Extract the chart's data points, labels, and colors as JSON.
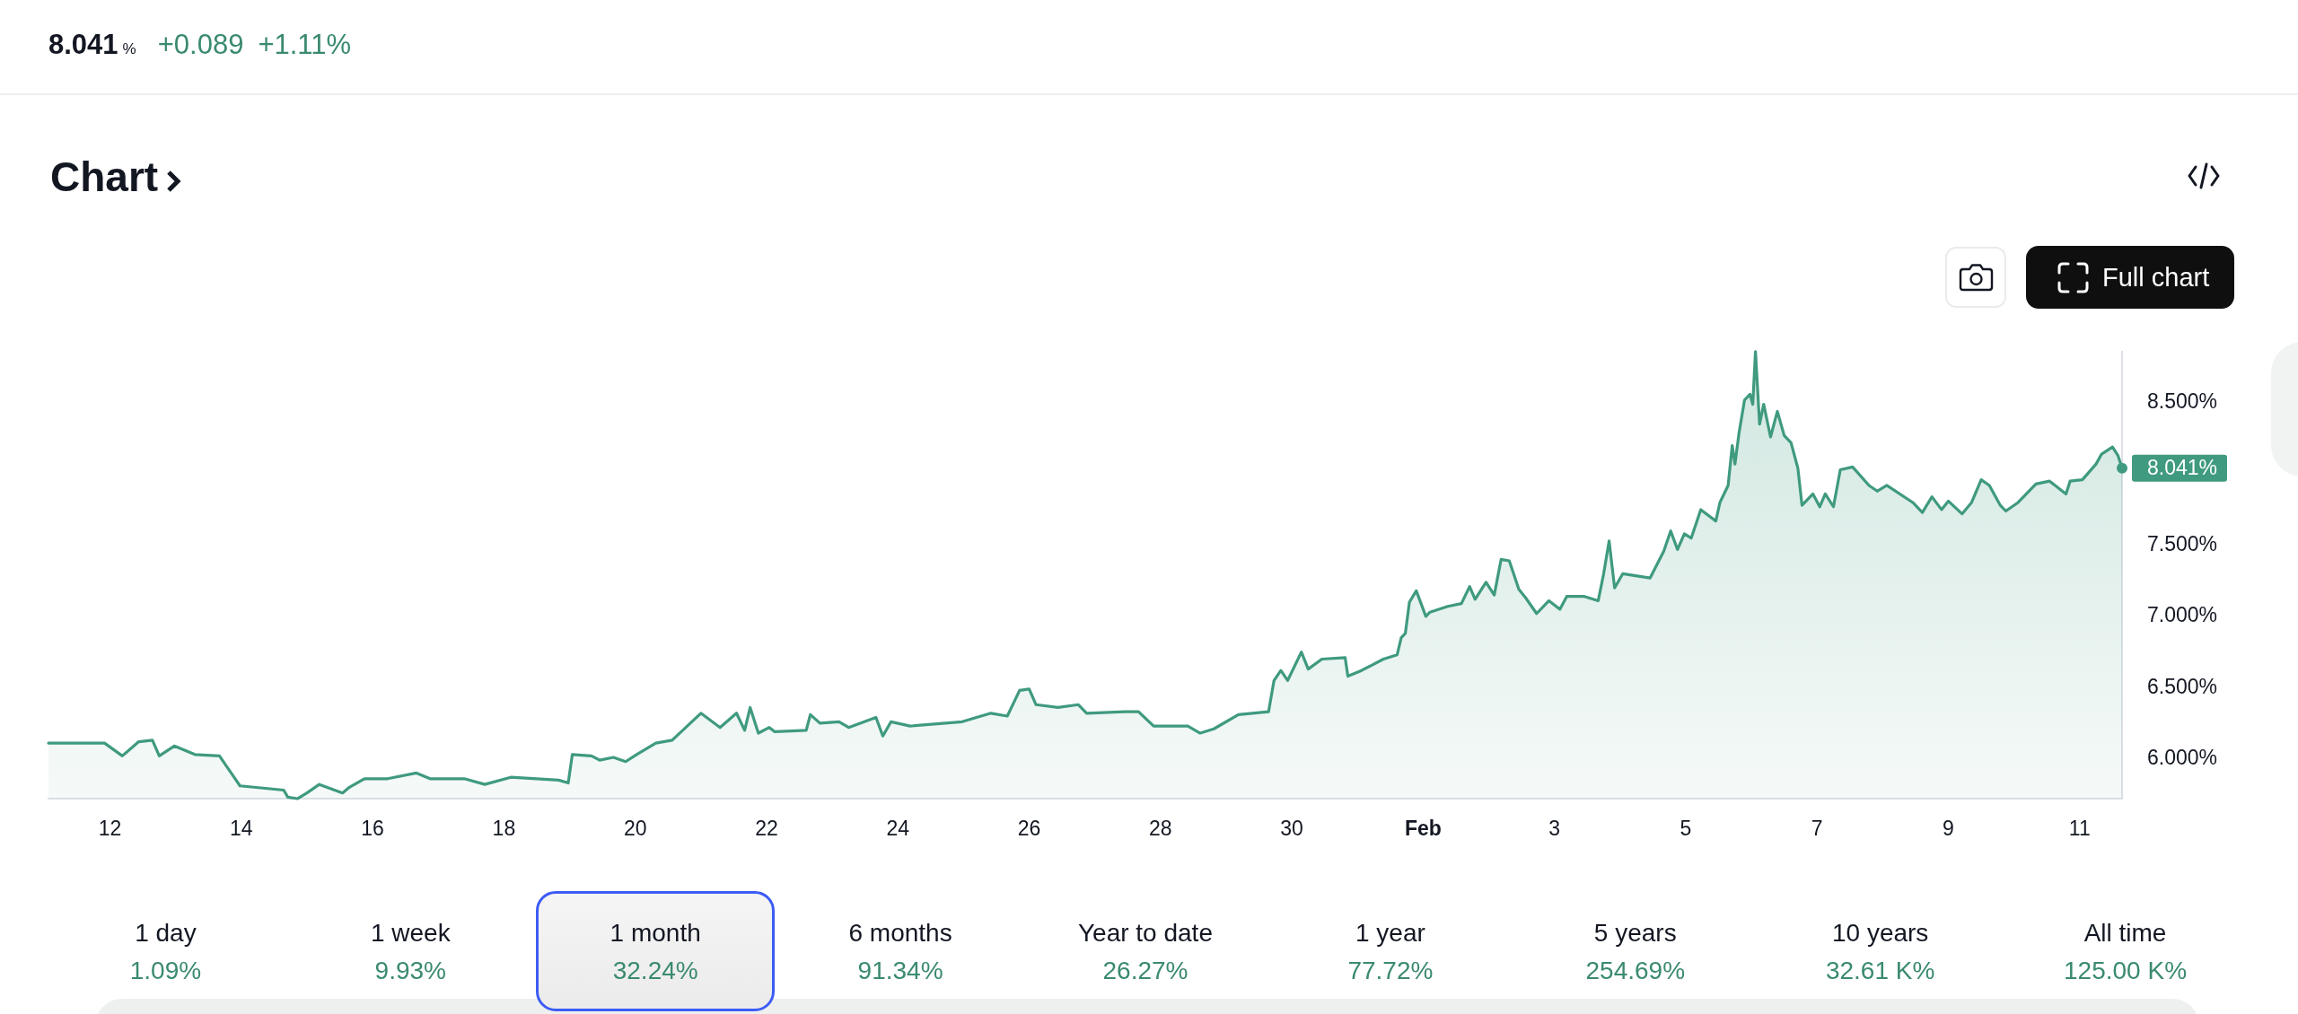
{
  "chart_data": {
    "type": "area",
    "title": "Chart",
    "x": [
      "--01-11T01:30",
      "--01-11T22:00",
      "--01-12T04:30",
      "--01-12T10:30",
      "--01-12T15:30",
      "--01-12T18:00",
      "--01-12T23:30",
      "--01-13T07:00",
      "--01-13T16:00",
      "--01-13T23:30",
      "--01-14T15:30",
      "--01-14T17:00",
      "--01-14T20:30",
      "--01-15T00:00",
      "--01-15T04:30",
      "--01-15T13:00",
      "--01-15T15:30",
      "--01-15T21:00",
      "--01-16T05:30",
      "--01-16T16:00",
      "--01-16T21:00",
      "--01-17T09:30",
      "--01-17T17:00",
      "--01-18T02:30",
      "--01-18T20:00",
      "--01-18T23:30",
      "--01-19T01:00",
      "--01-19T08:00",
      "--01-19T11:00",
      "--01-19T16:00",
      "--01-19T20:30",
      "--01-20T00:30",
      "--01-20T07:30",
      "--01-20T13:30",
      "--01-20T19:00",
      "--01-21T00:00",
      "--01-21T07:00",
      "--01-21T13:00",
      "--01-21T16:00",
      "--01-21T18:00",
      "--01-21T21:00",
      "--01-22T01:00",
      "--01-22T03:00",
      "--01-22T14:30",
      "--01-22T16:00",
      "--01-22T19:30",
      "--01-23T02:30",
      "--01-23T06:00",
      "--01-23T16:00",
      "--01-23T18:30",
      "--01-23T21:30",
      "--01-24T04:30",
      "--01-24T23:30",
      "--01-25T10:00",
      "--01-25T16:00",
      "--01-25T20:30",
      "--01-26T00:00",
      "--01-26T02:30",
      "--01-26T10:30",
      "--01-26T18:00",
      "--01-26T21:00",
      "--01-27T11:00",
      "--01-27T16:00",
      "--01-27T21:30",
      "--01-28T10:00",
      "--01-28T14:30",
      "--01-28T19:30",
      "--01-29T04:30",
      "--01-29T15:30",
      "--01-29T17:30",
      "--01-29T20:00",
      "--01-29T22:30",
      "--01-30T03:30",
      "--01-30T06:00",
      "--01-30T11:00",
      "--01-30T19:30",
      "--01-30T20:30",
      "--01-31T01:30",
      "--01-31T09:30",
      "--01-31T14:30",
      "--01-31T16:00",
      "--01-31T17:30",
      "--01-31T19:00",
      "--01-31T21:30",
      "--02-01T01:00",
      "--02-01T02:30",
      "--02-01T09:00",
      "--02-01T14:00",
      "--02-01T17:00",
      "--02-01T19:00",
      "--02-01T23:00",
      "--02-02T02:00",
      "--02-02T04:30",
      "--02-02T07:30",
      "--02-02T11:00",
      "--02-02T13:30",
      "--02-02T17:30",
      "--02-02T22:00",
      "--02-03T02:00",
      "--02-03T04:30",
      "--02-03T11:00",
      "--02-03T16:00",
      "--02-03T18:00",
      "--02-03T20:00",
      "--02-03T22:00",
      "--02-04T01:00",
      "--02-04T11:00",
      "--02-04T16:00",
      "--02-04T18:30",
      "--02-04T21:00",
      "--02-04T23:30",
      "--02-05T02:00",
      "--02-05T05:30",
      "--02-05T11:00",
      "--02-05T12:30",
      "--02-05T15:30",
      "--02-05T17:00",
      "--02-05T18:00",
      "--02-05T19:30",
      "--02-05T21:30",
      "--02-05T23:30",
      "--02-06T00:30",
      "--02-06T01:30",
      "--02-06T03:00",
      "--02-06T04:30",
      "--02-06T07:00",
      "--02-06T09:30",
      "--02-06T12:00",
      "--02-06T14:30",
      "--02-06T17:00",
      "--02-06T18:30",
      "--02-06T22:30",
      "--02-07T01:00",
      "--02-07T03:00",
      "--02-07T06:00",
      "--02-07T08:30",
      "--02-07T13:00",
      "--02-07T19:00",
      "--02-07T22:00",
      "--02-08T01:30",
      "--02-08T11:00",
      "--02-08T14:30",
      "--02-08T18:00",
      "--02-08T21:30",
      "--02-09T00:00",
      "--02-09T05:00",
      "--02-09T08:30",
      "--02-09T12:00",
      "--02-09T15:00",
      "--02-09T19:00",
      "--02-09T21:00",
      "--02-10T01:30",
      "--02-10T08:00",
      "--02-10T13:00",
      "--02-10T19:00",
      "--02-10T20:30",
      "--02-11T01:00",
      "--02-11T06:00",
      "--02-11T08:00",
      "--02-11T12:00",
      "--02-11T14:00",
      "--02-11T15:30"
    ],
    "values": [
      6.11,
      6.11,
      6.02,
      6.12,
      6.13,
      6.02,
      6.09,
      6.03,
      6.02,
      5.81,
      5.78,
      5.73,
      5.72,
      5.76,
      5.82,
      5.76,
      5.8,
      5.86,
      5.86,
      5.9,
      5.86,
      5.86,
      5.82,
      5.87,
      5.85,
      5.83,
      6.03,
      6.02,
      5.99,
      6.01,
      5.98,
      6.03,
      6.11,
      6.13,
      6.23,
      6.32,
      6.22,
      6.32,
      6.2,
      6.36,
      6.18,
      6.22,
      6.19,
      6.2,
      6.31,
      6.25,
      6.26,
      6.22,
      6.29,
      6.16,
      6.26,
      6.23,
      6.26,
      6.32,
      6.3,
      6.48,
      6.49,
      6.38,
      6.36,
      6.38,
      6.32,
      6.33,
      6.33,
      6.23,
      6.23,
      6.18,
      6.21,
      6.31,
      6.33,
      6.55,
      6.62,
      6.55,
      6.75,
      6.63,
      6.7,
      6.71,
      6.58,
      6.62,
      6.7,
      6.73,
      6.85,
      6.88,
      7.1,
      7.18,
      7.0,
      7.03,
      7.07,
      7.09,
      7.21,
      7.12,
      7.24,
      7.15,
      7.4,
      7.39,
      7.19,
      7.13,
      7.02,
      7.11,
      7.05,
      7.14,
      7.14,
      7.11,
      7.3,
      7.53,
      7.2,
      7.3,
      7.27,
      7.46,
      7.6,
      7.47,
      7.58,
      7.55,
      7.75,
      7.67,
      7.8,
      7.92,
      8.2,
      8.07,
      8.29,
      8.52,
      8.56,
      8.49,
      8.86,
      8.35,
      8.49,
      8.26,
      8.44,
      8.27,
      8.22,
      8.04,
      7.78,
      7.86,
      7.77,
      7.86,
      7.77,
      8.03,
      8.05,
      7.92,
      7.88,
      7.92,
      7.8,
      7.73,
      7.84,
      7.75,
      7.81,
      7.72,
      7.8,
      7.96,
      7.92,
      7.78,
      7.74,
      7.8,
      7.93,
      7.95,
      7.86,
      7.95,
      7.96,
      8.07,
      8.14,
      8.19,
      8.13,
      8.041
    ],
    "color": "#3f9a7f",
    "xlim": [
      "--01-11T01:30",
      "--02-11T15:30"
    ],
    "xticks": [
      {
        "value": "--01-12",
        "label": "12"
      },
      {
        "value": "--01-14",
        "label": "14"
      },
      {
        "value": "--01-16",
        "label": "16"
      },
      {
        "value": "--01-18",
        "label": "18"
      },
      {
        "value": "--01-20",
        "label": "20"
      },
      {
        "value": "--01-22",
        "label": "22"
      },
      {
        "value": "--01-24",
        "label": "24"
      },
      {
        "value": "--01-26",
        "label": "26"
      },
      {
        "value": "--01-28",
        "label": "28"
      },
      {
        "value": "--01-30",
        "label": "30"
      },
      {
        "value": "--02-01",
        "label": "Feb"
      },
      {
        "value": "--02-03",
        "label": "3"
      },
      {
        "value": "--02-05",
        "label": "5"
      },
      {
        "value": "--02-07",
        "label": "7"
      },
      {
        "value": "--02-09",
        "label": "9"
      },
      {
        "value": "--02-11",
        "label": "11"
      }
    ],
    "ylim": [
      5.72,
      8.86
    ],
    "yticks": [
      {
        "value": 6,
        "label": "6.000%"
      },
      {
        "value": 6.5,
        "label": "6.500%"
      },
      {
        "value": 7,
        "label": "7.000%"
      },
      {
        "value": 7.5,
        "label": "7.500%"
      },
      {
        "value": 8.5,
        "label": "8.500%"
      }
    ],
    "annotations": [
      "8.041",
      "%",
      "+0.089",
      "+1.11%",
      "Full chart",
      "1 day",
      "1.09%",
      "1 week",
      "9.93%",
      "1 month",
      "32.24%",
      "6 months",
      "91.34%",
      "Year to date",
      "26.27%",
      "1 year",
      "77.72%",
      "5 years",
      "254.69%",
      "10 years",
      "32.61 K%",
      "All time",
      "125.00 K%",
      {
        "text": "8.041%",
        "x": "--02-11T15:30",
        "y": 8.041
      }
    ]
  }
}
